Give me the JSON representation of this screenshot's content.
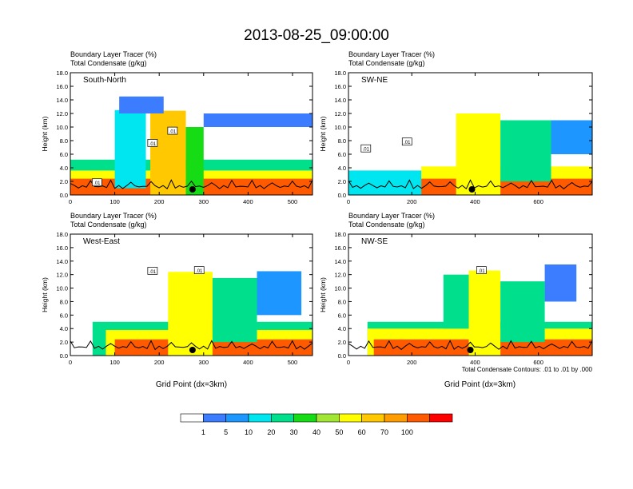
{
  "chart_data": {
    "type": "heatmap",
    "title": "2013-08-25_09:00:00",
    "footnote": "Total Condensate Contours: .01 to .01 by .000",
    "colorbar": {
      "levels": [
        1,
        5,
        10,
        20,
        30,
        40,
        50,
        60,
        70,
        100
      ],
      "colors": [
        "#ffffff",
        "#3c7cff",
        "#1e96ff",
        "#00e6f0",
        "#00e08c",
        "#16dc16",
        "#a0e632",
        "#ffff00",
        "#ffc800",
        "#ff9c00",
        "#ff5a00",
        "#ff0000"
      ]
    },
    "panels": [
      {
        "id": "south-north",
        "name": "South-North",
        "fill_label": "Boundary Layer Tracer   (%)",
        "contour_label": "Total Condensate   (g/kg)",
        "ylabel": "Height (km)",
        "xlabel": "",
        "ylim": [
          0,
          18
        ],
        "yticks": [
          "0.0",
          "2.0",
          "4.0",
          "6.0",
          "8.0",
          "10.0",
          "12.0",
          "14.0",
          "16.0",
          "18.0"
        ],
        "xlim": [
          0,
          545
        ],
        "xticks": [
          0,
          100,
          200,
          300,
          400,
          500
        ],
        "marker_x": 275,
        "contour_labels": [
          ".01",
          ".01",
          ".01"
        ],
        "contour_label_pos": [
          [
            60,
            1.8
          ],
          [
            185,
            7.6
          ],
          [
            230,
            9.4
          ]
        ],
        "features": [
          {
            "level": 4,
            "x0": 0,
            "x1": 545,
            "y0": 0,
            "y1": 5.2
          },
          {
            "level": 7,
            "x0": 0,
            "x1": 545,
            "y0": 0,
            "y1": 3.6
          },
          {
            "level": 10,
            "x0": 0,
            "x1": 545,
            "y0": 0,
            "y1": 2.4
          },
          {
            "level": 8,
            "x0": 180,
            "x1": 260,
            "y0": 0,
            "y1": 12.4
          },
          {
            "level": 5,
            "x0": 260,
            "x1": 300,
            "y0": 0,
            "y1": 10
          },
          {
            "level": 3,
            "x0": 100,
            "x1": 170,
            "y0": 1,
            "y1": 12.5
          },
          {
            "level": 1,
            "x0": 110,
            "x1": 210,
            "y0": 12,
            "y1": 14.5
          },
          {
            "level": 1,
            "x0": 300,
            "x1": 545,
            "y0": 10,
            "y1": 12
          }
        ]
      },
      {
        "id": "sw-ne",
        "name": "SW-NE",
        "fill_label": "Boundary Layer Tracer   (%)",
        "contour_label": "Total Condensate   (g/kg)",
        "ylabel": "Height (km)",
        "xlabel": "",
        "ylim": [
          0,
          18
        ],
        "yticks": [
          "0.0",
          "2.0",
          "4.0",
          "6.0",
          "8.0",
          "10.0",
          "12.0",
          "14.0",
          "16.0",
          "18.0"
        ],
        "xlim": [
          0,
          770
        ],
        "xticks": [
          0,
          200,
          400,
          600
        ],
        "marker_x": 390,
        "contour_labels": [
          ".01",
          ".01"
        ],
        "contour_label_pos": [
          [
            55,
            6.8
          ],
          [
            185,
            7.8
          ]
        ],
        "features": [
          {
            "level": 3,
            "x0": 0,
            "x1": 770,
            "y0": 0,
            "y1": 3.6
          },
          {
            "level": 7,
            "x0": 230,
            "x1": 770,
            "y0": 0,
            "y1": 4.2
          },
          {
            "level": 10,
            "x0": 230,
            "x1": 770,
            "y0": 0,
            "y1": 2.4
          },
          {
            "level": 7,
            "x0": 340,
            "x1": 480,
            "y0": 0,
            "y1": 12
          },
          {
            "level": 4,
            "x0": 480,
            "x1": 640,
            "y0": 2,
            "y1": 11
          },
          {
            "level": 2,
            "x0": 640,
            "x1": 770,
            "y0": 6,
            "y1": 11
          }
        ]
      },
      {
        "id": "west-east",
        "name": "West-East",
        "fill_label": "Boundary Layer Tracer   (%)",
        "contour_label": "Total Condensate   (g/kg)",
        "ylabel": "Height (km)",
        "xlabel": "Grid Point (dx=3km)",
        "ylim": [
          0,
          18
        ],
        "yticks": [
          "0.0",
          "2.0",
          "4.0",
          "6.0",
          "8.0",
          "10.0",
          "12.0",
          "14.0",
          "16.0",
          "18.0"
        ],
        "xlim": [
          0,
          545
        ],
        "xticks": [
          0,
          100,
          200,
          300,
          400,
          500
        ],
        "marker_x": 275,
        "contour_labels": [
          ".01",
          ".01"
        ],
        "contour_label_pos": [
          [
            185,
            12.5
          ],
          [
            290,
            12.6
          ]
        ],
        "features": [
          {
            "level": 4,
            "x0": 50,
            "x1": 545,
            "y0": 0,
            "y1": 5
          },
          {
            "level": 7,
            "x0": 80,
            "x1": 545,
            "y0": 0,
            "y1": 3.8
          },
          {
            "level": 10,
            "x0": 100,
            "x1": 545,
            "y0": 0,
            "y1": 2.4
          },
          {
            "level": 7,
            "x0": 220,
            "x1": 320,
            "y0": 0,
            "y1": 12.4
          },
          {
            "level": 4,
            "x0": 320,
            "x1": 420,
            "y0": 2,
            "y1": 11.5
          },
          {
            "level": 2,
            "x0": 420,
            "x1": 520,
            "y0": 6,
            "y1": 12.5
          }
        ]
      },
      {
        "id": "nw-se",
        "name": "NW-SE",
        "fill_label": "Boundary Layer Tracer   (%)",
        "contour_label": "Total Condensate   (g/kg)",
        "ylabel": "Height (km)",
        "xlabel": "Grid Point (dx=3km)",
        "ylim": [
          0,
          18
        ],
        "yticks": [
          "0.0",
          "2.0",
          "4.0",
          "6.0",
          "8.0",
          "10.0",
          "12.0",
          "14.0",
          "16.0",
          "18.0"
        ],
        "xlim": [
          0,
          770
        ],
        "xticks": [
          0,
          200,
          400,
          600
        ],
        "marker_x": 385,
        "contour_labels": [
          ".01"
        ],
        "contour_label_pos": [
          [
            420,
            12.6
          ]
        ],
        "features": [
          {
            "level": 4,
            "x0": 60,
            "x1": 770,
            "y0": 0,
            "y1": 5
          },
          {
            "level": 7,
            "x0": 60,
            "x1": 770,
            "y0": 0,
            "y1": 4
          },
          {
            "level": 10,
            "x0": 80,
            "x1": 770,
            "y0": 0,
            "y1": 2.4
          },
          {
            "level": 7,
            "x0": 380,
            "x1": 480,
            "y0": 0,
            "y1": 12.6
          },
          {
            "level": 4,
            "x0": 300,
            "x1": 380,
            "y0": 4,
            "y1": 12
          },
          {
            "level": 4,
            "x0": 480,
            "x1": 620,
            "y0": 2,
            "y1": 11
          },
          {
            "level": 1,
            "x0": 620,
            "x1": 720,
            "y0": 8,
            "y1": 13.5
          }
        ]
      }
    ]
  }
}
